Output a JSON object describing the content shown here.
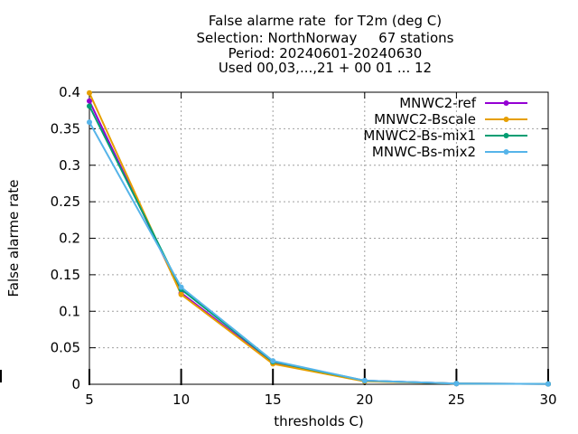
{
  "chart_data": {
    "type": "line",
    "title_lines": [
      "False alarme rate  for T2m (deg C)",
      "Selection: NorthNorway     67 stations",
      "Period: 20240601-20240630",
      "Used 00,03,...,21 + 00 01 ... 12"
    ],
    "xlabel": "thresholds C)",
    "ylabel": "False alarme rate",
    "x": [
      5,
      10,
      15,
      20,
      25,
      30
    ],
    "xlim": [
      5,
      30
    ],
    "ylim": [
      0,
      0.4
    ],
    "xticks": [
      "5",
      "10",
      "15",
      "20",
      "25",
      "30"
    ],
    "yticks": [
      "0",
      "0.05",
      "0.1",
      "0.15",
      "0.2",
      "0.25",
      "0.3",
      "0.35",
      "0.4"
    ],
    "grid": true,
    "legend_position": "top-right",
    "series": [
      {
        "name": "MNWC2-ref",
        "color": "#9400d3",
        "values": [
          0.388,
          0.125,
          0.029,
          0.005,
          0.001,
          0.0005
        ]
      },
      {
        "name": "MNWC2-Bscale",
        "color": "#e69f00",
        "values": [
          0.399,
          0.123,
          0.028,
          0.004,
          0.001,
          0.0005
        ]
      },
      {
        "name": "MNWC2-Bs-mix1",
        "color": "#009e73",
        "values": [
          0.381,
          0.13,
          0.031,
          0.005,
          0.001,
          0.0005
        ]
      },
      {
        "name": "MNWC-Bs-mix2",
        "color": "#56b4e9",
        "values": [
          0.359,
          0.133,
          0.032,
          0.005,
          0.001,
          0.0005
        ]
      }
    ]
  }
}
